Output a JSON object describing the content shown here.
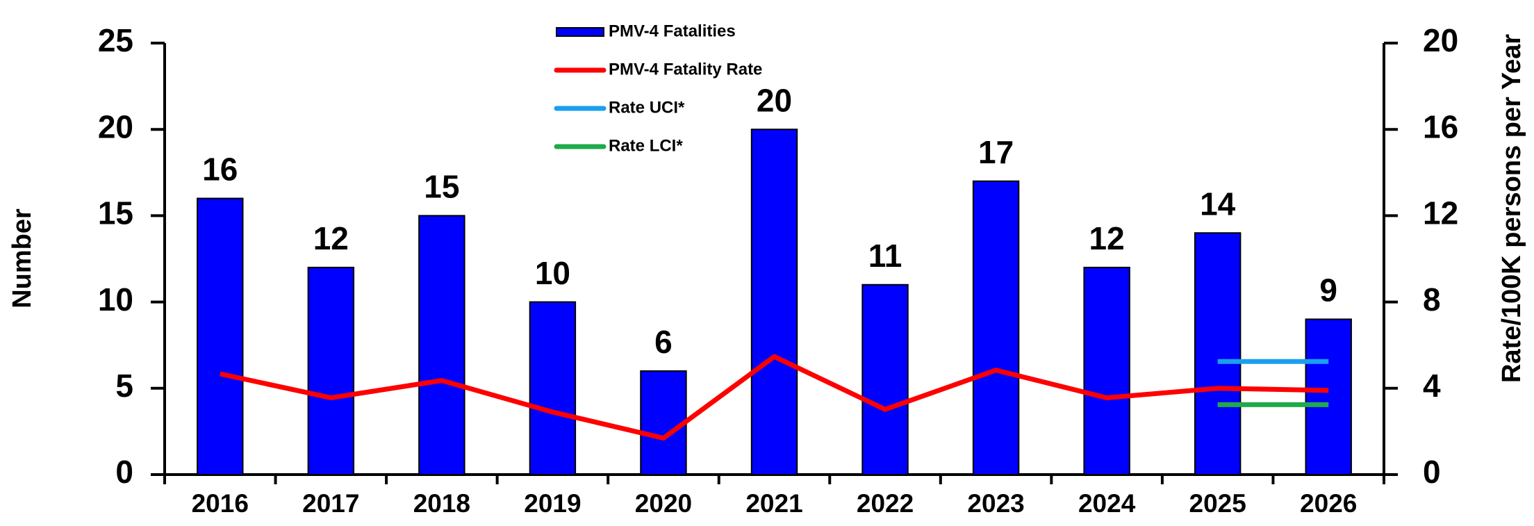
{
  "chart_data": {
    "type": "bar",
    "categories": [
      "2016",
      "2017",
      "2018",
      "2019",
      "2020",
      "2021",
      "2022",
      "2023",
      "2024",
      "2025",
      "2026"
    ],
    "series": [
      {
        "name": "PMV-4 Fatalities",
        "type": "bar",
        "axis": "y",
        "color": "#0000ff",
        "values": [
          16,
          12,
          15,
          10,
          6,
          20,
          11,
          17,
          12,
          14,
          9
        ]
      },
      {
        "name": "PMV-4 Fatality Rate",
        "type": "line",
        "axis": "y2",
        "color": "#ff0000",
        "values": [
          4.67,
          3.56,
          4.36,
          2.9,
          1.69,
          5.47,
          3.02,
          4.84,
          3.56,
          4.0,
          3.9
        ]
      },
      {
        "name": "Rate UCI*",
        "type": "line",
        "axis": "y2",
        "color": "#1a9ff0",
        "values": [
          null,
          null,
          null,
          null,
          null,
          null,
          null,
          null,
          null,
          5.24,
          5.24
        ]
      },
      {
        "name": "Rate LCI*",
        "type": "line",
        "axis": "y2",
        "color": "#1faa4a",
        "values": [
          null,
          null,
          null,
          null,
          null,
          null,
          null,
          null,
          null,
          3.24,
          3.24
        ]
      }
    ],
    "ylabel": "Number",
    "y2label": "Rate/100K persons per Year",
    "ylim": [
      0,
      25
    ],
    "yticks": [
      0,
      5,
      10,
      15,
      20,
      25
    ],
    "y2lim": [
      0,
      20
    ],
    "y2ticks": [
      0,
      4,
      8,
      12,
      16,
      20
    ],
    "data_labels": true,
    "legend": "top"
  }
}
